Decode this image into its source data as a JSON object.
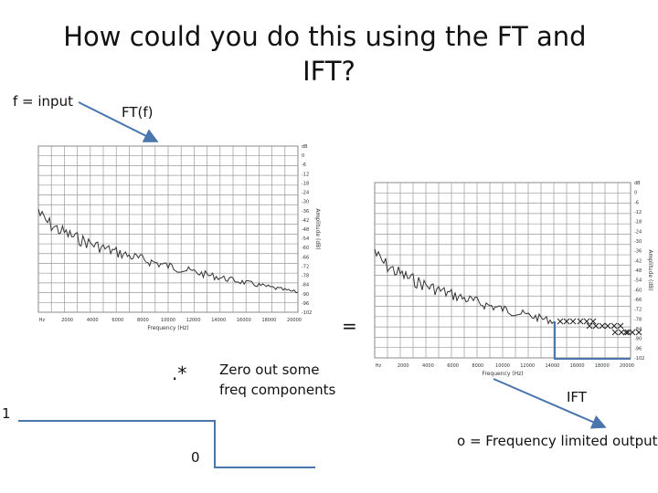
{
  "title": "How could you do this using the FT and IFT?",
  "labels": {
    "input": "f = input",
    "ft": "FT(f)",
    "times": ".*",
    "equals": "=",
    "zero_out": "Zero out some freq components",
    "ift": "IFT",
    "output": "o = Frequency limited output",
    "one": "1",
    "zero": "0"
  },
  "spectrum": {
    "x_label": "Frequency (Hz)",
    "y_label": "Amplitude (dB)",
    "x_ticks": [
      "Hz",
      "2000",
      "4000",
      "6000",
      "8000",
      "10000",
      "12000",
      "14000",
      "16000",
      "18000",
      "20000"
    ],
    "y_ticks": [
      "dB",
      "0",
      "-6",
      "-12",
      "-18",
      "-24",
      "-30",
      "-36",
      "-42",
      "-48",
      "-54",
      "-60",
      "-66",
      "-72",
      "-78",
      "-84",
      "-90",
      "-96",
      "-102"
    ]
  }
}
